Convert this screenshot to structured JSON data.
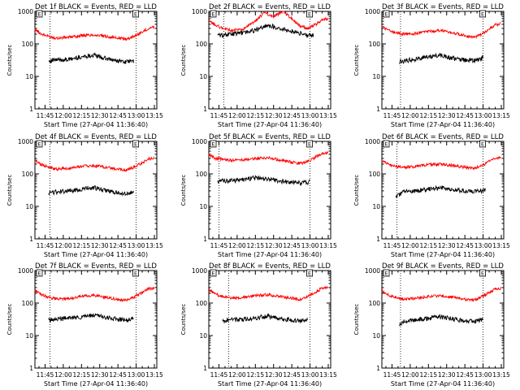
{
  "colors": {
    "events": "#000000",
    "lld": "#ff0000",
    "axis": "#000000",
    "background": "#ffffff"
  },
  "chart_data": [
    {
      "type": "line",
      "title": "Det 1f BLACK = Events, RED = LLD",
      "xlabel": "Start Time (27-Apr-04 11:36:40)",
      "ylabel": "Counts/sec",
      "yscale": "log",
      "ylim": [
        1,
        1000
      ],
      "xlim": [
        "11:36:40",
        "13:17:00"
      ],
      "x_ticks": [
        "11:45",
        "12:00",
        "12:15",
        "12:30",
        "12:45",
        "13:00",
        "13:15"
      ],
      "y_ticks": [
        "1",
        "10",
        "100",
        "1000"
      ],
      "vlines": [
        "11:49:00",
        "13:00:00"
      ],
      "marker_labels": [
        "E",
        "E"
      ],
      "series": [
        {
          "color": "#ff0000",
          "x": [
            "11:36:40",
            "11:42",
            "11:48",
            "11:55",
            "12:05",
            "12:15",
            "12:25",
            "12:35",
            "12:45",
            "12:52",
            "12:58",
            "13:05",
            "13:10",
            "13:15"
          ],
          "y": [
            280,
            200,
            170,
            150,
            160,
            180,
            190,
            170,
            150,
            140,
            170,
            230,
            300,
            330
          ]
        },
        {
          "color": "#000000",
          "x": [
            "11:48",
            "11:55",
            "12:05",
            "12:15",
            "12:25",
            "12:35",
            "12:45",
            "12:52",
            "12:58"
          ],
          "y": [
            30,
            32,
            33,
            40,
            45,
            35,
            30,
            28,
            30
          ]
        }
      ]
    },
    {
      "type": "line",
      "title": "Det 2f BLACK = Events, RED = LLD",
      "xlabel": "Start Time (27-Apr-04 11:36:40)",
      "ylabel": "Counts/sec",
      "yscale": "log",
      "ylim": [
        1,
        1000
      ],
      "xlim": [
        "11:36:40",
        "13:17:00"
      ],
      "x_ticks": [
        "11:45",
        "12:00",
        "12:15",
        "12:30",
        "12:45",
        "13:00",
        "13:15"
      ],
      "y_ticks": [
        "1",
        "10",
        "100",
        "1000"
      ],
      "vlines": [
        "11:49:00",
        "13:00:00"
      ],
      "marker_labels": [
        "E",
        "E"
      ],
      "series": [
        {
          "color": "#ff0000",
          "x": [
            "11:36:40",
            "11:42",
            "11:48",
            "11:55",
            "12:05",
            "12:15",
            "12:22",
            "12:30",
            "12:38",
            "12:45",
            "12:52",
            "12:58",
            "13:05",
            "13:10",
            "13:15"
          ],
          "y": [
            500,
            380,
            300,
            260,
            280,
            500,
            900,
            700,
            1000,
            600,
            350,
            300,
            400,
            550,
            600
          ]
        },
        {
          "color": "#000000",
          "x": [
            "11:44",
            "11:55",
            "12:05",
            "12:15",
            "12:25",
            "12:35",
            "12:45",
            "12:52",
            "12:58",
            "13:03"
          ],
          "y": [
            180,
            200,
            220,
            260,
            380,
            300,
            250,
            210,
            180,
            190
          ]
        }
      ]
    },
    {
      "type": "line",
      "title": "Det 3f BLACK = Events, RED = LLD",
      "xlabel": "Start Time (27-Apr-04 11:36:40)",
      "ylabel": "Counts/sec",
      "yscale": "log",
      "ylim": [
        1,
        1000
      ],
      "xlim": [
        "11:36:40",
        "13:17:00"
      ],
      "x_ticks": [
        "11:45",
        "12:00",
        "12:15",
        "12:30",
        "12:45",
        "13:00",
        "13:15"
      ],
      "y_ticks": [
        "1",
        "10",
        "100",
        "1000"
      ],
      "vlines": [
        "11:52:00",
        "13:00:00"
      ],
      "marker_labels": [
        "E",
        "E"
      ],
      "series": [
        {
          "color": "#ff0000",
          "x": [
            "11:36:40",
            "11:42",
            "11:48",
            "11:55",
            "12:05",
            "12:15",
            "12:25",
            "12:35",
            "12:45",
            "12:52",
            "12:58",
            "13:05",
            "13:10",
            "13:15"
          ],
          "y": [
            350,
            260,
            220,
            200,
            210,
            240,
            260,
            220,
            180,
            160,
            190,
            280,
            380,
            420
          ]
        },
        {
          "color": "#000000",
          "x": [
            "11:51",
            "11:55",
            "12:05",
            "12:15",
            "12:25",
            "12:35",
            "12:45",
            "12:52",
            "12:58",
            "13:00"
          ],
          "y": [
            28,
            30,
            34,
            40,
            45,
            36,
            32,
            30,
            33,
            38
          ]
        }
      ]
    },
    {
      "type": "line",
      "title": "Det 4f BLACK = Events, RED = LLD",
      "xlabel": "Start Time (27-Apr-04 11:36:40)",
      "ylabel": "Counts/sec",
      "yscale": "log",
      "ylim": [
        1,
        1000
      ],
      "xlim": [
        "11:36:40",
        "13:17:00"
      ],
      "x_ticks": [
        "11:45",
        "12:00",
        "12:15",
        "12:30",
        "12:45",
        "13:00",
        "13:15"
      ],
      "y_ticks": [
        "1",
        "10",
        "100",
        "1000"
      ],
      "vlines": [
        "11:49:00",
        "13:00:00"
      ],
      "marker_labels": [
        "E",
        "E"
      ],
      "series": [
        {
          "color": "#ff0000",
          "x": [
            "11:36:40",
            "11:42",
            "11:48",
            "11:55",
            "12:05",
            "12:15",
            "12:25",
            "12:35",
            "12:45",
            "12:52",
            "12:58",
            "13:05",
            "13:10",
            "13:15"
          ],
          "y": [
            260,
            190,
            160,
            140,
            150,
            170,
            180,
            160,
            140,
            130,
            160,
            220,
            290,
            310
          ]
        },
        {
          "color": "#000000",
          "x": [
            "11:48",
            "11:55",
            "12:05",
            "12:15",
            "12:25",
            "12:35",
            "12:45",
            "12:52",
            "12:58"
          ],
          "y": [
            26,
            28,
            30,
            34,
            38,
            30,
            26,
            24,
            27
          ]
        }
      ]
    },
    {
      "type": "line",
      "title": "Det 5f BLACK = Events, RED = LLD",
      "xlabel": "Start Time (27-Apr-04 11:36:40)",
      "ylabel": "Counts/sec",
      "yscale": "log",
      "ylim": [
        1,
        1000
      ],
      "xlim": [
        "11:36:40",
        "13:17:00"
      ],
      "x_ticks": [
        "11:45",
        "12:00",
        "12:15",
        "12:30",
        "12:45",
        "13:00",
        "13:15"
      ],
      "y_ticks": [
        "1",
        "10",
        "100",
        "1000"
      ],
      "vlines": [
        "11:45:00",
        "13:00:00"
      ],
      "marker_labels": [
        "E",
        "E"
      ],
      "series": [
        {
          "color": "#ff0000",
          "x": [
            "11:36:40",
            "11:42",
            "11:48",
            "11:55",
            "12:05",
            "12:15",
            "12:25",
            "12:35",
            "12:45",
            "12:52",
            "12:58",
            "13:05",
            "13:10",
            "13:15"
          ],
          "y": [
            380,
            300,
            280,
            260,
            270,
            300,
            310,
            270,
            230,
            210,
            240,
            330,
            420,
            450
          ]
        },
        {
          "color": "#000000",
          "x": [
            "11:44",
            "11:55",
            "12:05",
            "12:15",
            "12:25",
            "12:35",
            "12:45",
            "12:52",
            "12:58",
            "13:00"
          ],
          "y": [
            60,
            62,
            65,
            75,
            70,
            60,
            55,
            52,
            55,
            58
          ]
        }
      ]
    },
    {
      "type": "line",
      "title": "Det 6f BLACK = Events, RED = LLD",
      "xlabel": "Start Time (27-Apr-04 11:36:40)",
      "ylabel": "Counts/sec",
      "yscale": "log",
      "ylim": [
        1,
        1000
      ],
      "xlim": [
        "11:36:40",
        "13:17:00"
      ],
      "x_ticks": [
        "11:45",
        "12:00",
        "12:15",
        "12:30",
        "12:45",
        "13:00",
        "13:15"
      ],
      "y_ticks": [
        "1",
        "10",
        "100",
        "1000"
      ],
      "vlines": [
        "11:49:00",
        "13:00:00"
      ],
      "marker_labels": [
        "E",
        "E"
      ],
      "series": [
        {
          "color": "#ff0000",
          "x": [
            "11:36:40",
            "11:42",
            "11:48",
            "11:55",
            "12:05",
            "12:15",
            "12:25",
            "12:35",
            "12:45",
            "12:52",
            "12:58",
            "13:05",
            "13:10",
            "13:15"
          ],
          "y": [
            250,
            200,
            170,
            160,
            170,
            190,
            200,
            180,
            160,
            150,
            170,
            240,
            300,
            320
          ]
        },
        {
          "color": "#000000",
          "x": [
            "11:48",
            "11:55",
            "12:05",
            "12:15",
            "12:25",
            "12:35",
            "12:45",
            "12:52",
            "12:58",
            "13:02"
          ],
          "y": [
            20,
            28,
            30,
            34,
            38,
            32,
            30,
            28,
            30,
            32
          ]
        }
      ]
    },
    {
      "type": "line",
      "title": "Det 7f BLACK = Events, RED = LLD",
      "xlabel": "Start Time (27-Apr-04 11:36:40)",
      "ylabel": "Counts/sec",
      "yscale": "log",
      "ylim": [
        1,
        1000
      ],
      "xlim": [
        "11:36:40",
        "13:17:00"
      ],
      "x_ticks": [
        "11:45",
        "12:00",
        "12:15",
        "12:30",
        "12:45",
        "13:00",
        "13:15"
      ],
      "y_ticks": [
        "1",
        "10",
        "100",
        "1000"
      ],
      "vlines": [
        "11:49:00",
        "13:00:00"
      ],
      "marker_labels": [
        "E",
        "E"
      ],
      "series": [
        {
          "color": "#ff0000",
          "x": [
            "11:36:40",
            "11:42",
            "11:48",
            "11:55",
            "12:05",
            "12:15",
            "12:25",
            "12:35",
            "12:45",
            "12:52",
            "12:58",
            "13:05",
            "13:10",
            "13:15"
          ],
          "y": [
            250,
            180,
            150,
            130,
            140,
            160,
            170,
            150,
            130,
            120,
            150,
            210,
            270,
            290
          ]
        },
        {
          "color": "#000000",
          "x": [
            "11:48",
            "11:55",
            "12:05",
            "12:15",
            "12:25",
            "12:35",
            "12:45",
            "12:52",
            "12:58"
          ],
          "y": [
            30,
            32,
            34,
            38,
            42,
            36,
            32,
            30,
            33
          ]
        }
      ]
    },
    {
      "type": "line",
      "title": "Det 8f BLACK = Events, RED = LLD",
      "xlabel": "Start Time (27-Apr-04 11:36:40)",
      "ylabel": "Counts/sec",
      "yscale": "log",
      "ylim": [
        1,
        1000
      ],
      "xlim": [
        "11:36:40",
        "13:17:00"
      ],
      "x_ticks": [
        "11:45",
        "12:00",
        "12:15",
        "12:30",
        "12:45",
        "13:00",
        "13:15"
      ],
      "y_ticks": [
        "1",
        "10",
        "100",
        "1000"
      ],
      "vlines": [
        "11:53:00",
        "13:00:00"
      ],
      "marker_labels": [
        "E",
        "E"
      ],
      "series": [
        {
          "color": "#ff0000",
          "x": [
            "11:36:40",
            "11:42",
            "11:48",
            "11:55",
            "12:05",
            "12:15",
            "12:25",
            "12:35",
            "12:45",
            "12:52",
            "12:58",
            "13:05",
            "13:10",
            "13:15"
          ],
          "y": [
            260,
            190,
            160,
            140,
            150,
            170,
            180,
            160,
            140,
            130,
            160,
            220,
            290,
            310
          ]
        },
        {
          "color": "#000000",
          "x": [
            "11:48",
            "11:55",
            "12:05",
            "12:15",
            "12:25",
            "12:35",
            "12:45",
            "12:52",
            "12:58"
          ],
          "y": [
            28,
            30,
            32,
            35,
            40,
            33,
            30,
            28,
            30
          ]
        }
      ]
    },
    {
      "type": "line",
      "title": "Det 9f BLACK = Events, RED = LLD",
      "xlabel": "Start Time (27-Apr-04 11:36:40)",
      "ylabel": "Counts/sec",
      "yscale": "log",
      "ylim": [
        1,
        1000
      ],
      "xlim": [
        "11:36:40",
        "13:17:00"
      ],
      "x_ticks": [
        "11:45",
        "12:00",
        "12:15",
        "12:30",
        "12:45",
        "13:00",
        "13:15"
      ],
      "y_ticks": [
        "1",
        "10",
        "100",
        "1000"
      ],
      "vlines": [
        "11:52:00",
        "13:00:00"
      ],
      "marker_labels": [
        "E",
        "E"
      ],
      "series": [
        {
          "color": "#ff0000",
          "x": [
            "11:36:40",
            "11:42",
            "11:48",
            "11:55",
            "12:05",
            "12:15",
            "12:25",
            "12:35",
            "12:45",
            "12:52",
            "12:58",
            "13:05",
            "13:10",
            "13:15"
          ],
          "y": [
            240,
            180,
            150,
            130,
            140,
            160,
            170,
            150,
            130,
            120,
            150,
            210,
            270,
            290
          ]
        },
        {
          "color": "#000000",
          "x": [
            "11:51",
            "11:55",
            "12:05",
            "12:15",
            "12:25",
            "12:35",
            "12:45",
            "12:52",
            "12:58",
            "13:00"
          ],
          "y": [
            22,
            28,
            30,
            34,
            38,
            32,
            28,
            27,
            30,
            33
          ]
        }
      ]
    }
  ]
}
